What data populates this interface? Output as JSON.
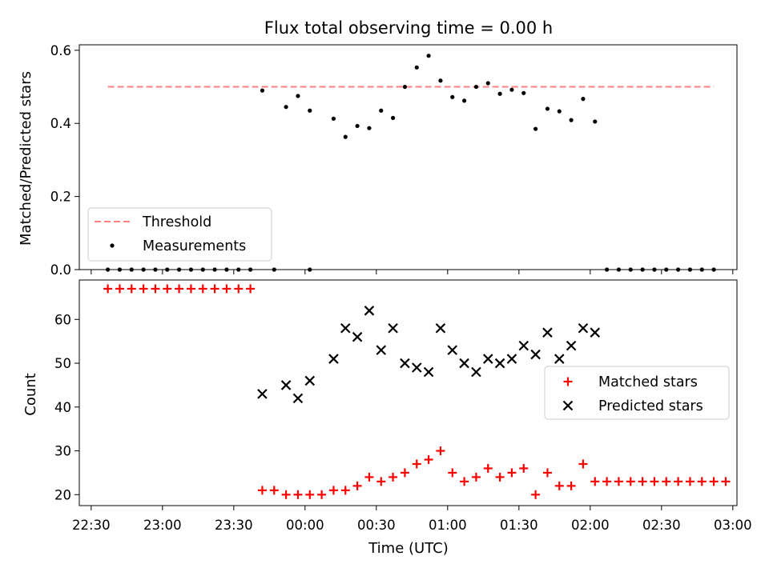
{
  "colors": {
    "threshold": "#ff7f7f",
    "measurement": "#000000",
    "matched": "#ff0000",
    "predicted": "#000000"
  },
  "chart_data": [
    {
      "type": "scatter",
      "title": "Flux total observing time = 0.00 h",
      "xlabel": "",
      "ylabel": "Matched/Predicted stars",
      "ylim": [
        0,
        0.615
      ],
      "yticks": [
        "0.0",
        "0.2",
        "0.4",
        "0.6"
      ],
      "legend": {
        "position": "bottom-left",
        "entries": [
          "Threshold",
          "Measurements"
        ]
      },
      "threshold": {
        "name": "Threshold",
        "y": 0.5,
        "x_start": "22:37",
        "x_end": "02:52"
      },
      "series": [
        {
          "name": "Measurements",
          "marker": "dot",
          "points": [
            [
              "22:37",
              0
            ],
            [
              "22:42",
              0
            ],
            [
              "22:47",
              0
            ],
            [
              "22:52",
              0
            ],
            [
              "22:57",
              0
            ],
            [
              "23:02",
              0
            ],
            [
              "23:07",
              0
            ],
            [
              "23:12",
              0
            ],
            [
              "23:17",
              0
            ],
            [
              "23:22",
              0
            ],
            [
              "23:27",
              0
            ],
            [
              "23:32",
              0
            ],
            [
              "23:37",
              0
            ],
            [
              "23:42",
              0.49
            ],
            [
              "23:47",
              0
            ],
            [
              "23:52",
              0.445
            ],
            [
              "23:57",
              0.475
            ],
            [
              "00:02",
              0
            ],
            [
              "00:02",
              0.435
            ],
            [
              "00:12",
              0.413
            ],
            [
              "00:17",
              0.363
            ],
            [
              "00:22",
              0.393
            ],
            [
              "00:27",
              0.387
            ],
            [
              "00:32",
              0.435
            ],
            [
              "00:37",
              0.415
            ],
            [
              "00:42",
              0.5
            ],
            [
              "00:47",
              0.553
            ],
            [
              "00:52",
              0.585
            ],
            [
              "00:57",
              0.517
            ],
            [
              "01:02",
              0.472
            ],
            [
              "01:07",
              0.462
            ],
            [
              "01:12",
              0.5
            ],
            [
              "01:17",
              0.51
            ],
            [
              "01:22",
              0.481
            ],
            [
              "01:27",
              0.492
            ],
            [
              "01:32",
              0.483
            ],
            [
              "01:37",
              0.385
            ],
            [
              "01:42",
              0.44
            ],
            [
              "01:47",
              0.433
            ],
            [
              "01:52",
              0.409
            ],
            [
              "01:57",
              0.467
            ],
            [
              "02:02",
              0.405
            ],
            [
              "02:07",
              0
            ],
            [
              "02:12",
              0
            ],
            [
              "02:17",
              0
            ],
            [
              "02:22",
              0
            ],
            [
              "02:27",
              0
            ],
            [
              "02:32",
              0
            ],
            [
              "02:37",
              0
            ],
            [
              "02:42",
              0
            ],
            [
              "02:47",
              0
            ],
            [
              "02:52",
              0
            ]
          ]
        }
      ]
    },
    {
      "type": "scatter",
      "title": "",
      "xlabel": "Time (UTC)",
      "ylabel": "Count",
      "ylim": [
        17.5,
        69
      ],
      "yticks": [
        "20",
        "30",
        "40",
        "50",
        "60"
      ],
      "xticks": [
        "22:30",
        "23:00",
        "23:30",
        "00:00",
        "00:30",
        "01:00",
        "01:30",
        "02:00",
        "02:30",
        "03:00"
      ],
      "legend": {
        "position": "center-right",
        "entries": [
          "Matched stars",
          "Predicted stars"
        ]
      },
      "series": [
        {
          "name": "Matched stars",
          "marker": "plus",
          "points": [
            [
              "22:37",
              67
            ],
            [
              "22:42",
              67
            ],
            [
              "22:47",
              67
            ],
            [
              "22:52",
              67
            ],
            [
              "22:57",
              67
            ],
            [
              "23:02",
              67
            ],
            [
              "23:07",
              67
            ],
            [
              "23:12",
              67
            ],
            [
              "23:17",
              67
            ],
            [
              "23:22",
              67
            ],
            [
              "23:27",
              67
            ],
            [
              "23:32",
              67
            ],
            [
              "23:37",
              67
            ],
            [
              "23:42",
              21
            ],
            [
              "23:47",
              21
            ],
            [
              "23:52",
              20
            ],
            [
              "23:57",
              20
            ],
            [
              "00:02",
              20
            ],
            [
              "00:07",
              20
            ],
            [
              "00:12",
              21
            ],
            [
              "00:17",
              21
            ],
            [
              "00:22",
              22
            ],
            [
              "00:27",
              24
            ],
            [
              "00:32",
              23
            ],
            [
              "00:37",
              24
            ],
            [
              "00:42",
              25
            ],
            [
              "00:47",
              27
            ],
            [
              "00:52",
              28
            ],
            [
              "00:57",
              30
            ],
            [
              "01:02",
              25
            ],
            [
              "01:07",
              23
            ],
            [
              "01:12",
              24
            ],
            [
              "01:17",
              26
            ],
            [
              "01:22",
              24
            ],
            [
              "01:27",
              25
            ],
            [
              "01:32",
              26
            ],
            [
              "01:37",
              20
            ],
            [
              "01:42",
              25
            ],
            [
              "01:47",
              22
            ],
            [
              "01:52",
              22
            ],
            [
              "01:57",
              27
            ],
            [
              "02:02",
              23
            ],
            [
              "02:07",
              23
            ],
            [
              "02:12",
              23
            ],
            [
              "02:17",
              23
            ],
            [
              "02:22",
              23
            ],
            [
              "02:27",
              23
            ],
            [
              "02:32",
              23
            ],
            [
              "02:37",
              23
            ],
            [
              "02:42",
              23
            ],
            [
              "02:47",
              23
            ],
            [
              "02:52",
              23
            ],
            [
              "02:57",
              23
            ]
          ]
        },
        {
          "name": "Predicted stars",
          "marker": "x",
          "points": [
            [
              "23:42",
              43
            ],
            [
              "23:52",
              45
            ],
            [
              "23:57",
              42
            ],
            [
              "00:02",
              46
            ],
            [
              "00:12",
              51
            ],
            [
              "00:17",
              58
            ],
            [
              "00:22",
              56
            ],
            [
              "00:27",
              62
            ],
            [
              "00:32",
              53
            ],
            [
              "00:37",
              58
            ],
            [
              "00:42",
              50
            ],
            [
              "00:47",
              49
            ],
            [
              "00:52",
              48
            ],
            [
              "00:57",
              58
            ],
            [
              "01:02",
              53
            ],
            [
              "01:07",
              50
            ],
            [
              "01:12",
              48
            ],
            [
              "01:17",
              51
            ],
            [
              "01:22",
              50
            ],
            [
              "01:27",
              51
            ],
            [
              "01:32",
              54
            ],
            [
              "01:37",
              52
            ],
            [
              "01:42",
              57
            ],
            [
              "01:47",
              51
            ],
            [
              "01:52",
              54
            ],
            [
              "01:57",
              58
            ],
            [
              "02:02",
              57
            ]
          ]
        }
      ]
    }
  ]
}
